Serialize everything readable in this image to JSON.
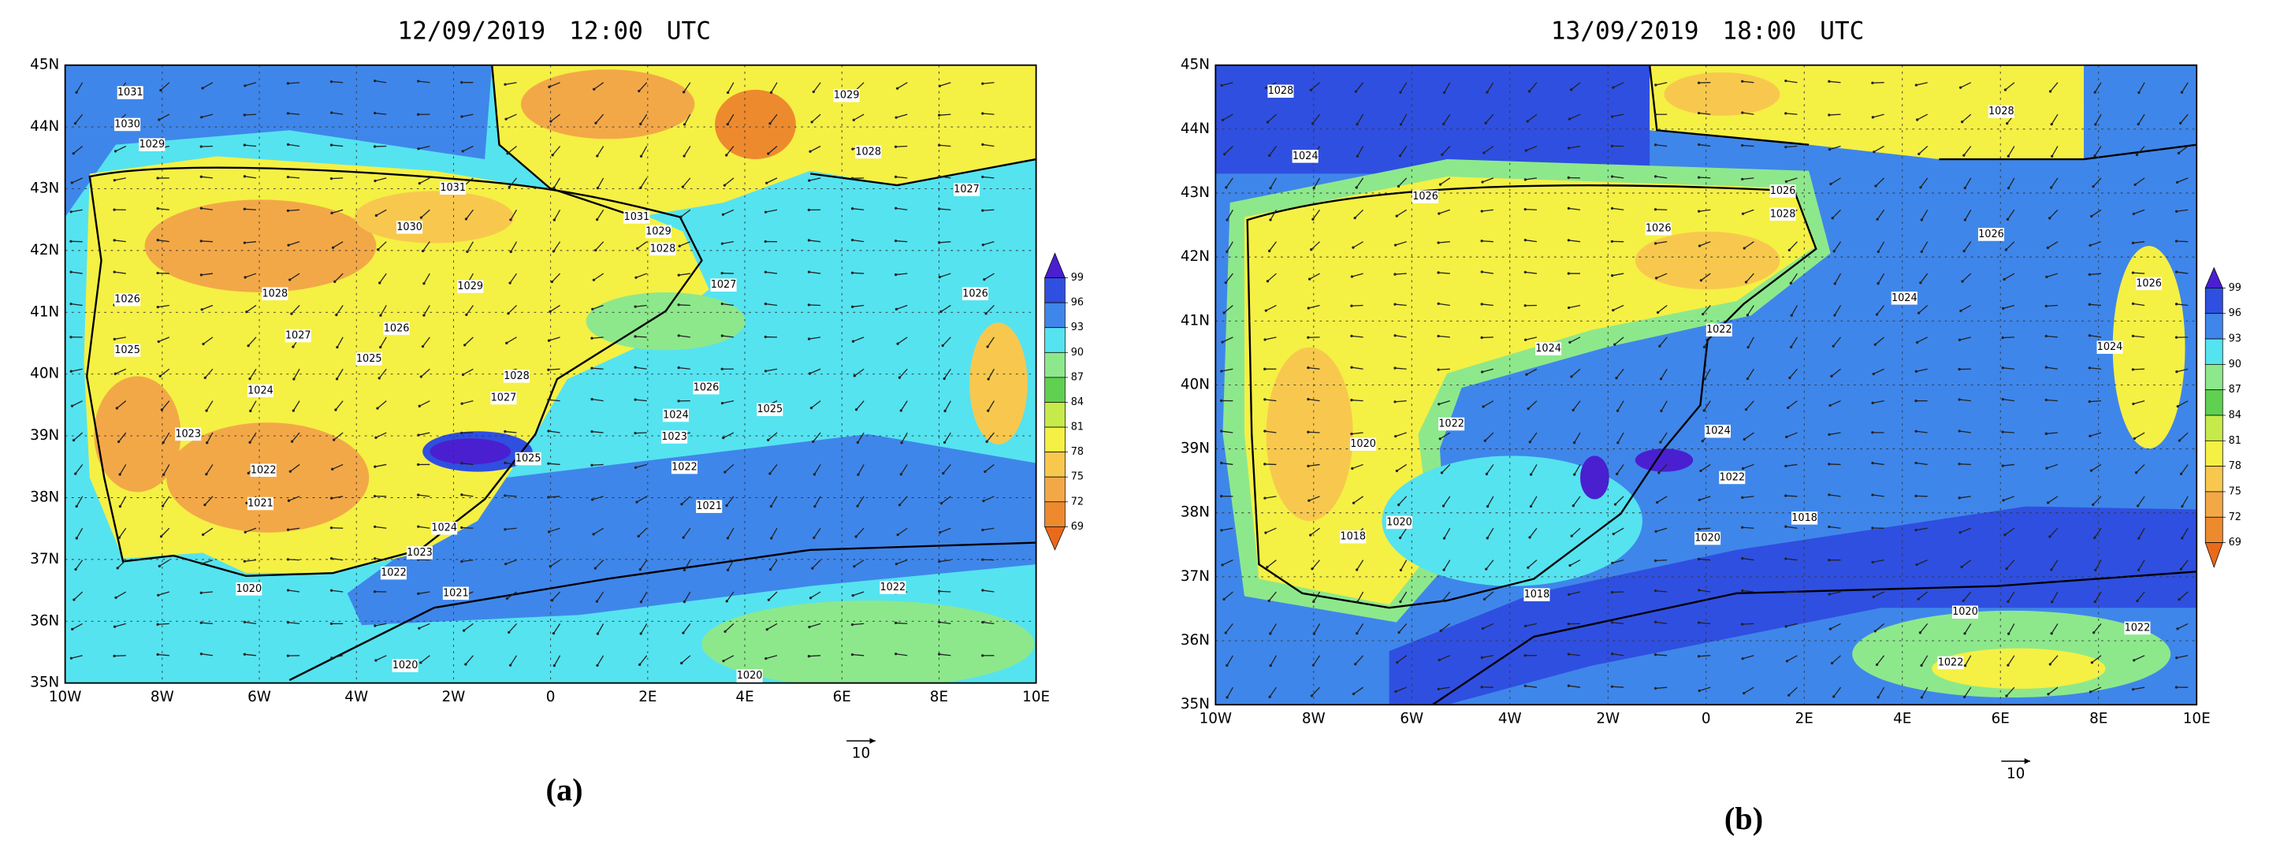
{
  "panels": [
    {
      "title": "12/09/2019 12:00 UTC",
      "caption": "(a)",
      "xticks": [
        "10W",
        "8W",
        "6W",
        "4W",
        "2W",
        "0",
        "2E",
        "4E",
        "6E",
        "8E",
        "10E"
      ],
      "yticks": [
        "35N",
        "36N",
        "37N",
        "38N",
        "39N",
        "40N",
        "41N",
        "42N",
        "43N",
        "44N",
        "45N"
      ],
      "colorbar": {
        "levels": [
          99,
          96,
          93,
          90,
          87,
          84,
          81,
          78,
          75,
          72,
          69
        ],
        "colors": [
          "#4a1fd0",
          "#2f4fe0",
          "#3f86ea",
          "#55e3f0",
          "#8de88c",
          "#5fd050",
          "#c6ea4a",
          "#f5f044",
          "#f8c84e",
          "#f3a848",
          "#ee8a2e",
          "#e86a1c"
        ]
      },
      "vector_reference": "10",
      "isobar_labels": [
        1031,
        1030,
        1029,
        1031,
        1030,
        1031,
        1029,
        1028,
        1029,
        1028,
        1027,
        1026,
        1025,
        1026,
        1025,
        1024,
        1023,
        1022,
        1021,
        1020,
        1022,
        1023,
        1024,
        1025,
        1027,
        1028,
        1027,
        1026,
        1024,
        1023,
        1022,
        1021,
        1025,
        1021,
        1020,
        1020,
        1022,
        1026,
        1027,
        1028,
        1029
      ]
    },
    {
      "title": "13/09/2019 18:00 UTC",
      "caption": "(b)",
      "xticks": [
        "10W",
        "8W",
        "6W",
        "4W",
        "2W",
        "0",
        "2E",
        "4E",
        "6E",
        "8E",
        "10E"
      ],
      "yticks": [
        "35N",
        "36N",
        "37N",
        "38N",
        "39N",
        "40N",
        "41N",
        "42N",
        "43N",
        "44N",
        "45N"
      ],
      "colorbar": {
        "levels": [
          99,
          96,
          93,
          90,
          87,
          84,
          81,
          78,
          75,
          72,
          69
        ],
        "colors": [
          "#4a1fd0",
          "#2f4fe0",
          "#3f86ea",
          "#55e3f0",
          "#8de88c",
          "#5fd050",
          "#c6ea4a",
          "#f5f044",
          "#f8c84e",
          "#f3a848",
          "#ee8a2e",
          "#e86a1c"
        ]
      },
      "vector_reference": "10",
      "isobar_labels": [
        1028,
        1024,
        1026,
        1026,
        1028,
        1026,
        1026,
        1028,
        1024,
        1026,
        1024,
        1024,
        1022,
        1022,
        1020,
        1024,
        1022,
        1020,
        1018,
        1018,
        1020,
        1018,
        1020,
        1022,
        1022
      ]
    }
  ]
}
